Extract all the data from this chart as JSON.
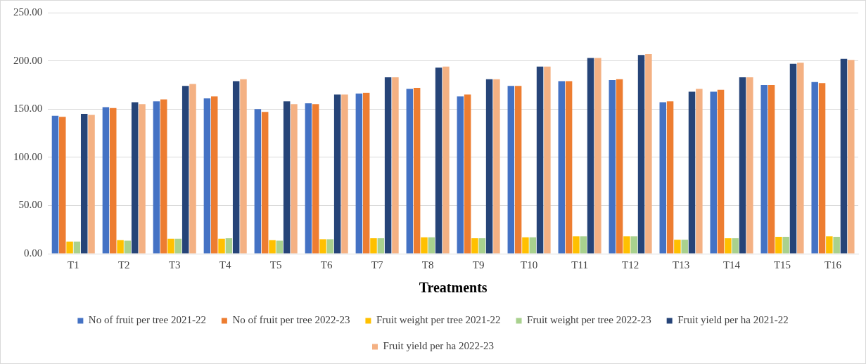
{
  "chart_data": {
    "type": "bar",
    "xlabel": "Treatments",
    "categories": [
      "T1",
      "T2",
      "T3",
      "T4",
      "T5",
      "T6",
      "T7",
      "T8",
      "T9",
      "T10",
      "T11",
      "T12",
      "T13",
      "T14",
      "T15",
      "T16"
    ],
    "series": [
      {
        "name": "No of fruit per tree 2021-22",
        "color": "#4472c4",
        "values": [
          143,
          152,
          158,
          161,
          150,
          156,
          166,
          171,
          163,
          174,
          179,
          180,
          157,
          168,
          175,
          178
        ]
      },
      {
        "name": "No of fruit per tree 2022-23",
        "color": "#ed7d31",
        "values": [
          142,
          151,
          160,
          163,
          147,
          155,
          167,
          172,
          165,
          174,
          179,
          181,
          158,
          170,
          175,
          177
        ]
      },
      {
        "name": "Fruit weight per tree 2021-22",
        "color": "#ffc000",
        "values": [
          12.5,
          14,
          15.5,
          15.5,
          14,
          15,
          16,
          17,
          16,
          17,
          18,
          18,
          14.5,
          16,
          17.5,
          18
        ]
      },
      {
        "name": "Fruit weight per tree 2022-23",
        "color": "#a9d18e",
        "values": [
          12.5,
          13.5,
          15.5,
          16,
          13.5,
          15,
          16,
          17,
          16,
          17,
          18,
          18,
          14.5,
          16,
          17.5,
          17.5
        ]
      },
      {
        "name": "Fruit yield per ha 2021-22",
        "color": "#264478",
        "values": [
          145,
          157,
          174,
          179,
          158,
          165,
          183,
          193,
          181,
          194,
          203,
          206,
          168,
          183,
          197,
          202
        ]
      },
      {
        "name": "Fruit yield per ha 2022-23",
        "color": "#f4b183",
        "values": [
          144,
          155,
          176,
          181,
          155,
          165,
          183,
          194,
          181,
          194,
          203,
          207,
          171,
          183,
          198,
          201
        ]
      }
    ],
    "ylim": [
      0,
      250
    ],
    "yticks": [
      {
        "value": 0,
        "label": "0.00"
      },
      {
        "value": 50,
        "label": "50.00"
      },
      {
        "value": 100,
        "label": "100.00"
      },
      {
        "value": 150,
        "label": "150.00"
      },
      {
        "value": 200,
        "label": "200.00"
      },
      {
        "value": 250,
        "label": "250.00"
      }
    ],
    "grid": "y",
    "legend": "bottom"
  }
}
